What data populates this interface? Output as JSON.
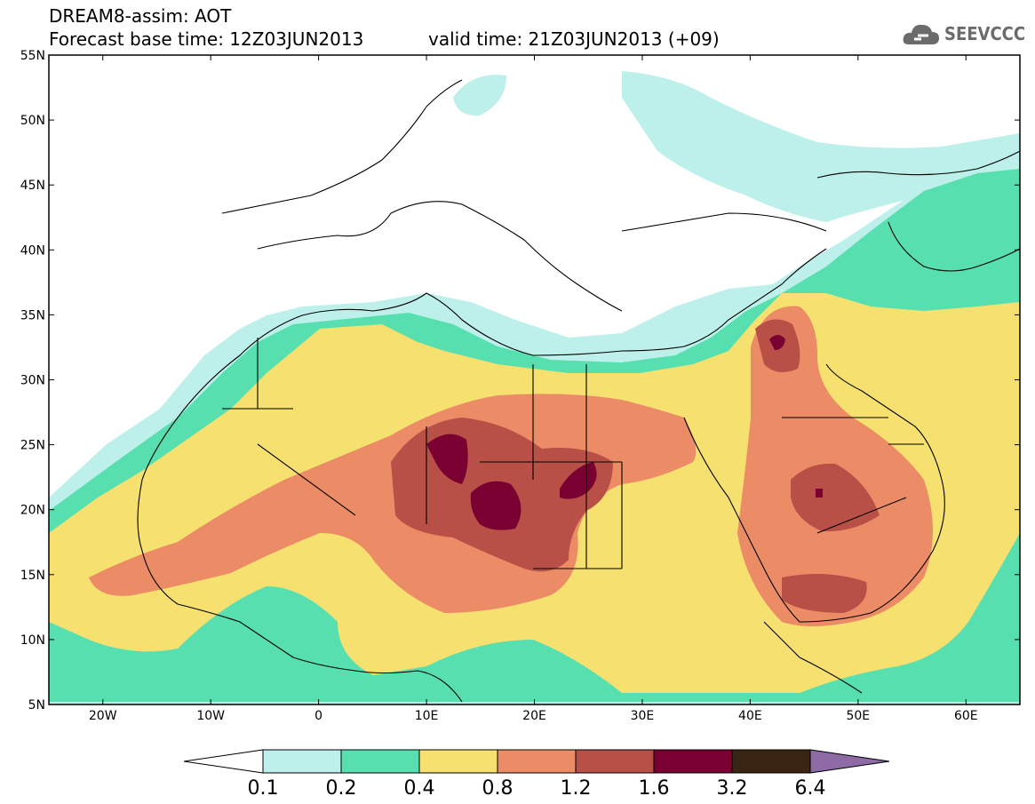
{
  "title": {
    "line1": "DREAM8-assim: AOT",
    "line2": "Forecast base time: 12Z03JUN2013",
    "valid": "valid time: 21Z03JUN2013 (+09)"
  },
  "logo": {
    "text": "SEEVCCC",
    "icon": "cloud-icon"
  },
  "axes": {
    "lon_ticks": [
      "20W",
      "10W",
      "0",
      "10E",
      "20E",
      "30E",
      "40E",
      "50E",
      "60E"
    ],
    "lat_ticks": [
      "55N",
      "50N",
      "45N",
      "40N",
      "35N",
      "30N",
      "25N",
      "20N",
      "15N",
      "10N",
      "5N"
    ],
    "lon_range": [
      -25,
      65
    ],
    "lat_range": [
      5,
      55
    ]
  },
  "colorbar": {
    "levels": [
      "0.1",
      "0.2",
      "0.4",
      "0.8",
      "1.2",
      "1.6",
      "3.2",
      "6.4"
    ],
    "colors": [
      "#bdf0ea",
      "#58dfb0",
      "#f6e170",
      "#ec8c66",
      "#b85048",
      "#7a0032",
      "#3a2414",
      "#8e6aa6"
    ]
  },
  "chart_data": {
    "type": "heatmap",
    "variable": "AOT",
    "x_range": [
      -25,
      65
    ],
    "y_range": [
      5,
      55
    ],
    "hotspots": [
      {
        "lon": 12,
        "lat": 24.5,
        "level": "1.6"
      },
      {
        "lon": 17,
        "lat": 21,
        "level": "1.6"
      },
      {
        "lon": 24.5,
        "lat": 22,
        "level": "1.6"
      },
      {
        "lon": 42.5,
        "lat": 32.5,
        "level": "1.6"
      },
      {
        "lon": 46,
        "lat": 21,
        "level": "1.6"
      }
    ]
  }
}
